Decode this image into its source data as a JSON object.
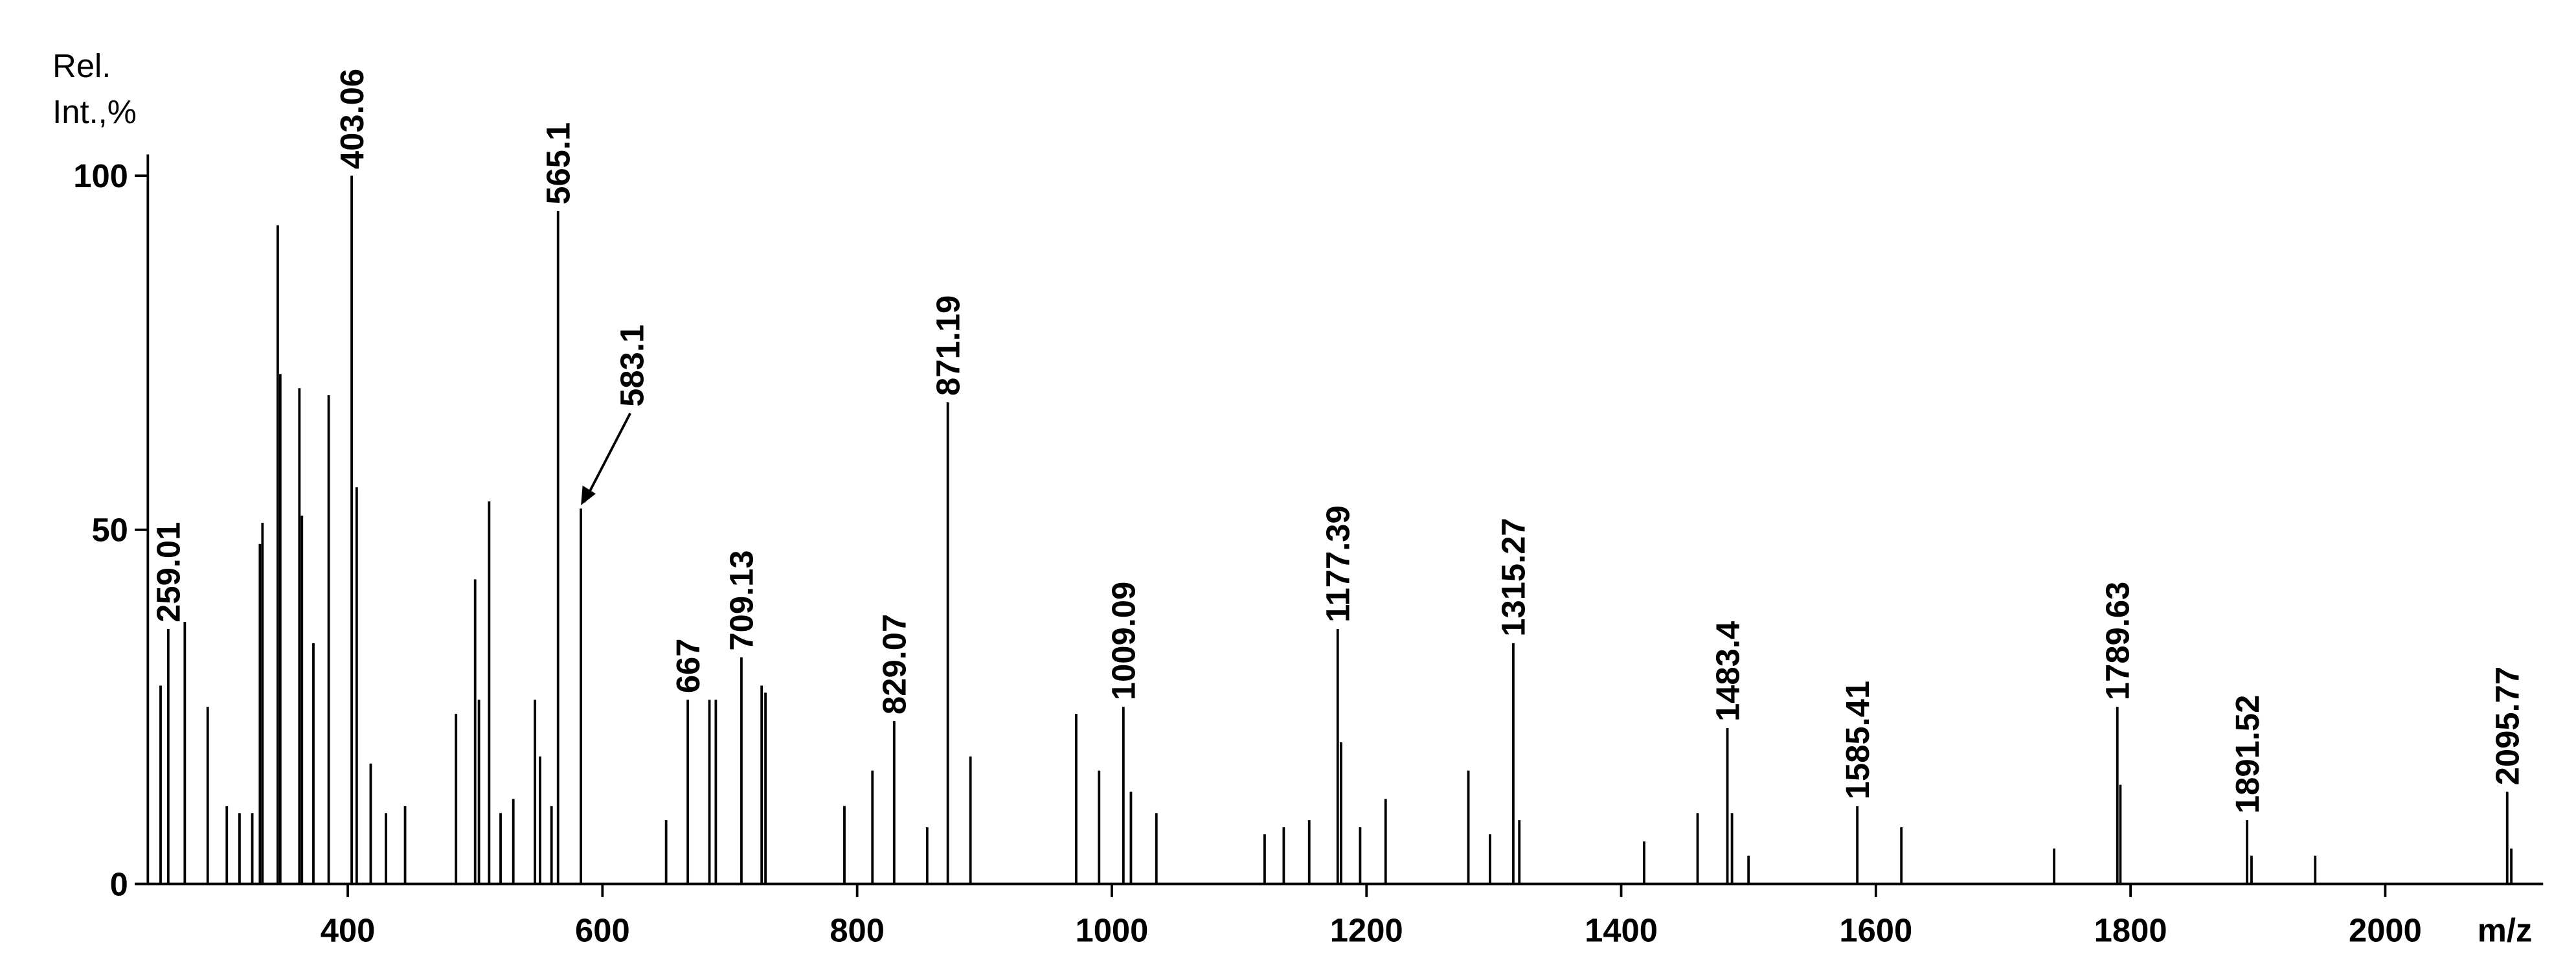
{
  "chart_data": {
    "type": "spectrum",
    "y_label": [
      "Rel.",
      "Int.,%"
    ],
    "x_label": "m/z",
    "color": "#000000",
    "xlim": [
      243,
      2124
    ],
    "xticks": [
      400,
      600,
      800,
      1000,
      1200,
      1400,
      1600,
      1800,
      2000
    ],
    "ylim": [
      0,
      103
    ],
    "yticks": [
      0,
      50,
      100
    ],
    "peaks": {
      "x": [
        259.01,
        403.06,
        565.1,
        583.1,
        667.0,
        709.13,
        829.07,
        871.19,
        1009.09,
        1177.39,
        1315.27,
        1483.4,
        1585.41,
        1789.63,
        1891.52,
        2095.77
      ],
      "values": [
        36,
        100,
        95,
        53,
        26,
        32,
        23,
        68,
        25,
        36,
        34,
        22,
        11,
        25,
        9,
        13
      ]
    },
    "minor_peaks": {
      "x": [
        253,
        272,
        290,
        305,
        315,
        325,
        331,
        333,
        345,
        347,
        362,
        364,
        373,
        385,
        407,
        418,
        430,
        445,
        485,
        500,
        503,
        511,
        520,
        530,
        547,
        551,
        560,
        650,
        684,
        689,
        725,
        728,
        790,
        812,
        855,
        889,
        972,
        990,
        1015,
        1035,
        1120,
        1135,
        1155,
        1180,
        1195,
        1215,
        1280,
        1297,
        1320,
        1418,
        1460,
        1487,
        1500,
        1620,
        1740,
        1792,
        1895,
        1945,
        2099
      ],
      "values": [
        28,
        37,
        25,
        11,
        10,
        10,
        48,
        51,
        93,
        72,
        70,
        52,
        34,
        69,
        56,
        17,
        10,
        11,
        24,
        43,
        26,
        54,
        10,
        12,
        26,
        18,
        11,
        9,
        26,
        26,
        28,
        27,
        11,
        16,
        8,
        18,
        24,
        16,
        13,
        10,
        7,
        8,
        9,
        20,
        8,
        12,
        16,
        7,
        9,
        6,
        10,
        10,
        4,
        8,
        5,
        14,
        4,
        4,
        5
      ]
    }
  }
}
